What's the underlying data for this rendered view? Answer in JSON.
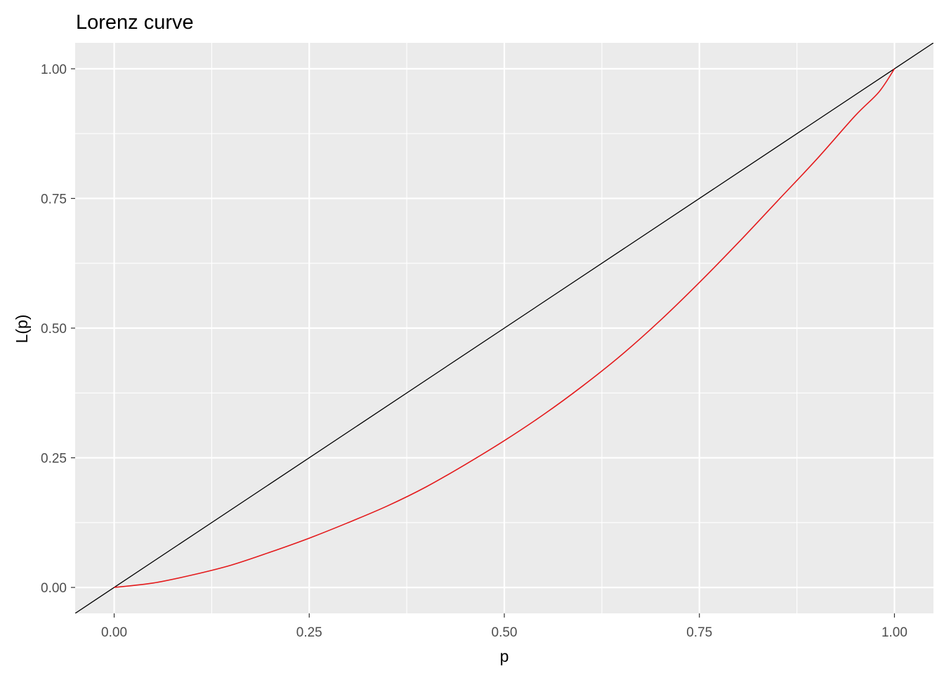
{
  "chart_data": {
    "type": "line",
    "title": "Lorenz curve",
    "xlabel": "p",
    "ylabel": "L(p)",
    "xlim": [
      -0.05,
      1.05
    ],
    "ylim": [
      -0.05,
      1.05
    ],
    "x_ticks": [
      0,
      0.25,
      0.5,
      0.75,
      1
    ],
    "x_tick_labels": [
      "0.00",
      "0.25",
      "0.50",
      "0.75",
      "1.00"
    ],
    "y_ticks": [
      0,
      0.25,
      0.5,
      0.75,
      1
    ],
    "y_tick_labels": [
      "0.00",
      "0.25",
      "0.50",
      "0.75",
      "1.00"
    ],
    "grid": true,
    "legend": "none",
    "background_color": "#EBEBEB",
    "grid_color": "#FFFFFF",
    "series": [
      {
        "kind": "abline",
        "intercept": 0,
        "slope": 1,
        "color": "#000000"
      },
      {
        "kind": "curve",
        "color": "#E41A1C",
        "x": [
          0,
          0.05,
          0.1,
          0.15,
          0.2,
          0.25,
          0.3,
          0.35,
          0.4,
          0.45,
          0.5,
          0.55,
          0.6,
          0.65,
          0.7,
          0.75,
          0.8,
          0.85,
          0.9,
          0.95,
          0.98,
          1.0
        ],
        "y": [
          0,
          0.0085,
          0.024,
          0.043,
          0.068,
          0.095,
          0.125,
          0.157,
          0.194,
          0.237,
          0.283,
          0.333,
          0.388,
          0.448,
          0.515,
          0.588,
          0.665,
          0.745,
          0.825,
          0.91,
          0.955,
          1.0
        ]
      }
    ]
  }
}
